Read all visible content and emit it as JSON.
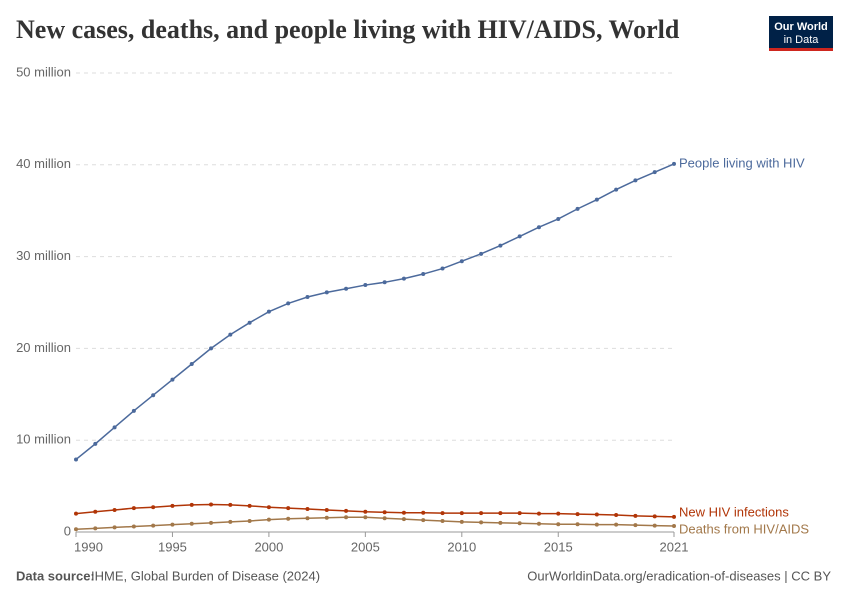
{
  "chart_data": {
    "type": "line",
    "title": "New cases, deaths, and people living with HIV/AIDS, World",
    "x": [
      1990,
      1991,
      1992,
      1993,
      1994,
      1995,
      1996,
      1997,
      1998,
      1999,
      2000,
      2001,
      2002,
      2003,
      2004,
      2005,
      2006,
      2007,
      2008,
      2009,
      2010,
      2011,
      2012,
      2013,
      2014,
      2015,
      2016,
      2017,
      2018,
      2019,
      2020,
      2021
    ],
    "xlim": [
      1990,
      2021
    ],
    "xticks": [
      1990,
      1995,
      2000,
      2005,
      2010,
      2015,
      2021
    ],
    "ylim": [
      0,
      50000000
    ],
    "yticks": [
      0,
      {
        "value": 10000000,
        "label": "10 million"
      },
      {
        "value": 20000000,
        "label": "20 million"
      },
      {
        "value": 30000000,
        "label": "30 million"
      },
      {
        "value": 40000000,
        "label": "40 million"
      },
      {
        "value": 50000000,
        "label": "50 million"
      }
    ],
    "grid": true,
    "series": [
      {
        "name": "People living with HIV",
        "color": "#4c6a9c",
        "values": [
          7900000,
          9600000,
          11400000,
          13200000,
          14900000,
          16600000,
          18300000,
          20000000,
          21500000,
          22800000,
          24000000,
          24900000,
          25600000,
          26100000,
          26500000,
          26900000,
          27200000,
          27600000,
          28100000,
          28700000,
          29500000,
          30300000,
          31200000,
          32200000,
          33200000,
          34100000,
          35200000,
          36200000,
          37300000,
          38300000,
          39200000,
          40100000
        ]
      },
      {
        "name": "New HIV infections",
        "color": "#b13507",
        "values": [
          2000000,
          2200000,
          2400000,
          2600000,
          2700000,
          2850000,
          2950000,
          3000000,
          2950000,
          2850000,
          2700000,
          2600000,
          2500000,
          2400000,
          2300000,
          2200000,
          2150000,
          2100000,
          2100000,
          2050000,
          2050000,
          2050000,
          2050000,
          2050000,
          2000000,
          2000000,
          1950000,
          1900000,
          1850000,
          1750000,
          1700000,
          1650000
        ]
      },
      {
        "name": "Deaths from HIV/AIDS",
        "color": "#a2784a",
        "values": [
          300000,
          400000,
          500000,
          600000,
          700000,
          800000,
          900000,
          1000000,
          1100000,
          1200000,
          1350000,
          1450000,
          1500000,
          1550000,
          1600000,
          1600000,
          1500000,
          1400000,
          1300000,
          1200000,
          1100000,
          1050000,
          1000000,
          950000,
          900000,
          850000,
          850000,
          800000,
          800000,
          750000,
          700000,
          650000
        ]
      }
    ]
  },
  "footer": {
    "source_label": "Data source:",
    "source": "IHME, Global Burden of Disease (2024)",
    "link": "OurWorldinData.org/eradication-of-diseases | CC BY"
  },
  "logo": {
    "line1": "Our World",
    "line2": "in Data"
  }
}
